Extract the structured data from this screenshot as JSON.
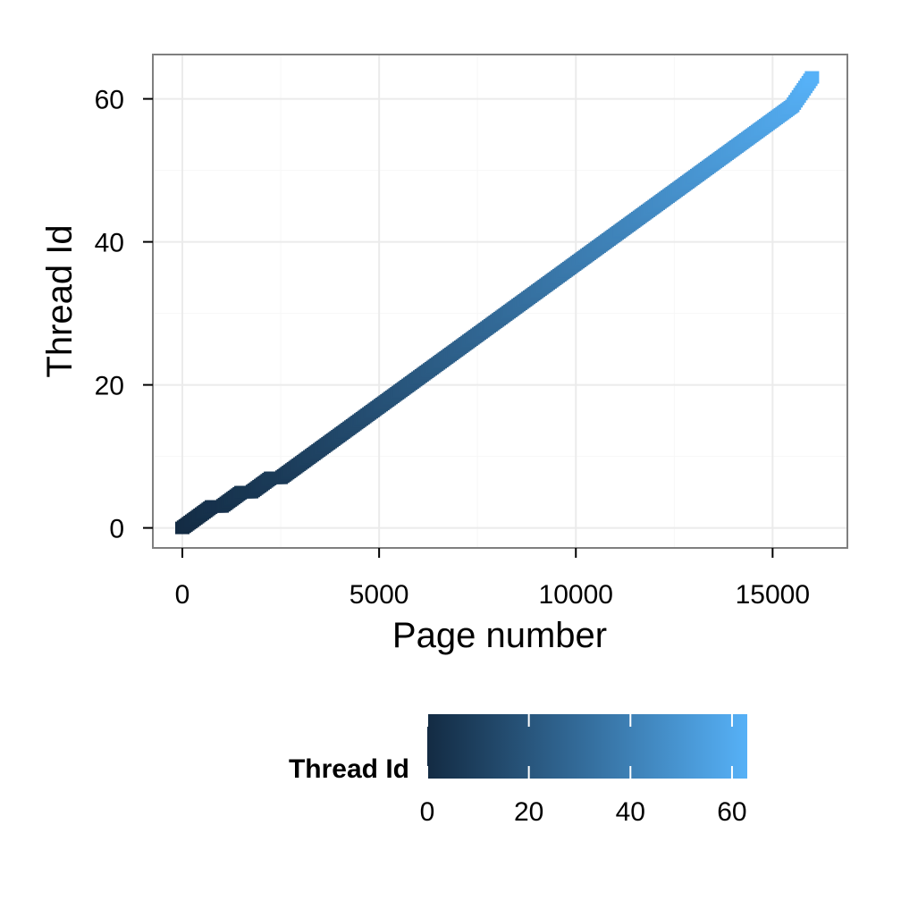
{
  "chart_data": {
    "type": "scatter",
    "title": "",
    "xlabel": "Page number",
    "ylabel": "Thread Id",
    "xlim": [
      -750,
      16900
    ],
    "ylim": [
      -2.8,
      66.2
    ],
    "x_ticks": [
      0,
      5000,
      10000,
      15000
    ],
    "x_tick_labels": [
      "0",
      "5000",
      "10000",
      "15000"
    ],
    "y_ticks": [
      0,
      20,
      40,
      60
    ],
    "y_tick_labels": [
      "0",
      "20",
      "40",
      "60"
    ],
    "grid": true,
    "legend": {
      "title": "Thread Id",
      "position": "bottom",
      "type": "colorbar",
      "range": [
        0,
        63
      ],
      "ticks": [
        0,
        20,
        40,
        60
      ],
      "tick_labels": [
        "0",
        "20",
        "40",
        "60"
      ],
      "colors": {
        "low": "#132b43",
        "high": "#56b1f7"
      }
    },
    "series": [
      {
        "color_by": "y",
        "x": [
          0,
          250,
          500,
          750,
          1000,
          1250,
          1500,
          1750,
          2000,
          2250,
          2500,
          2750,
          3000,
          3250,
          3500,
          3750,
          4000,
          4250,
          4500,
          4750,
          5000,
          5250,
          5500,
          5750,
          6000,
          6250,
          6500,
          6750,
          7000,
          7250,
          7500,
          7750,
          8000,
          8250,
          8500,
          8750,
          9000,
          9250,
          9500,
          9750,
          10000,
          10250,
          10500,
          10750,
          11000,
          11250,
          11500,
          11750,
          12000,
          12250,
          12500,
          12750,
          13000,
          13250,
          13500,
          13750,
          14000,
          14250,
          14500,
          14750,
          15000,
          15250,
          15500,
          15750,
          16000
        ],
        "y": [
          0,
          1,
          2,
          3,
          3,
          4,
          5,
          5,
          6,
          7,
          7,
          8,
          9,
          10,
          11,
          12,
          13,
          14,
          15,
          16,
          17,
          18,
          19,
          20,
          21,
          22,
          23,
          24,
          25,
          26,
          27,
          28,
          29,
          30,
          31,
          32,
          33,
          34,
          35,
          36,
          37,
          38,
          39,
          40,
          41,
          42,
          43,
          44,
          45,
          46,
          47,
          48,
          49,
          50,
          51,
          52,
          53,
          54,
          55,
          56,
          57,
          58,
          59,
          61,
          63
        ]
      }
    ]
  }
}
